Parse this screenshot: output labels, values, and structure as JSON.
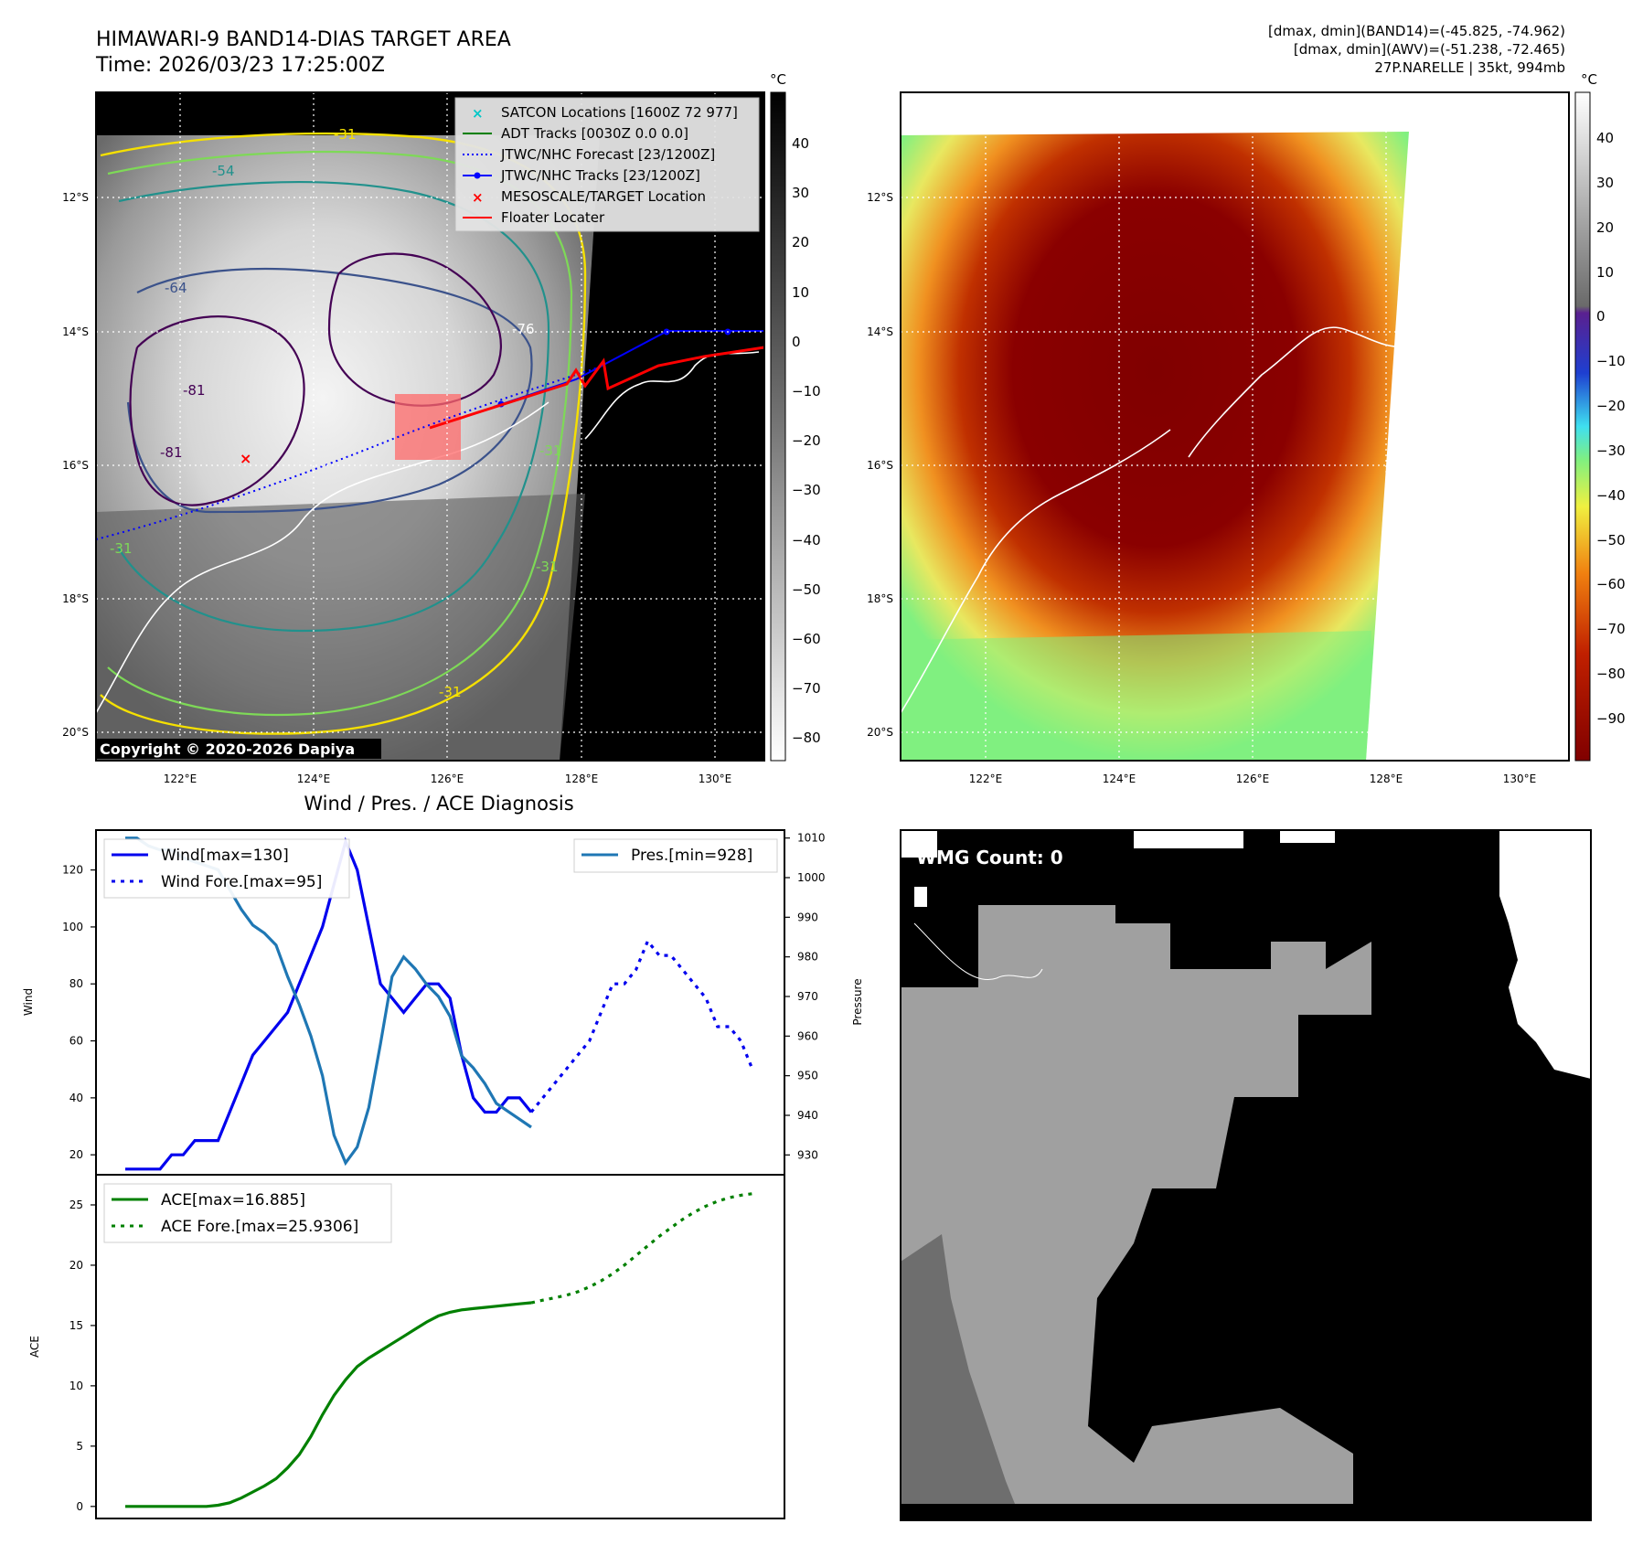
{
  "header": {
    "title": "HIMAWARI-9 BAND14-DIAS TARGET AREA",
    "time": "Time: 2026/03/23 17:25:00Z",
    "stats1": "[dmax, dmin](BAND14)=(-45.825, -74.962)",
    "stats2": "[dmax, dmin](AWV)=(-51.238, -72.465)",
    "storm": "27P.NARELLE | 35kt, 994mb"
  },
  "copyright": "Copyright © 2020-2026 Dapiya",
  "map_panels": {
    "lat_labels": [
      "12°S",
      "14°S",
      "16°S",
      "18°S",
      "20°S"
    ],
    "lon_labels": [
      "122°E",
      "124°E",
      "126°E",
      "128°E",
      "130°E"
    ],
    "contour_labels": [
      "-31",
      "-54",
      "-64",
      "-76",
      "-81",
      "-81",
      "-31",
      "-31",
      "-31",
      "-31"
    ],
    "colorbar_unit": "°C",
    "colorbar_left_ticks": [
      "40",
      "30",
      "20",
      "10",
      "0",
      "−10",
      "−20",
      "−30",
      "−40",
      "−50",
      "−60",
      "−70",
      "−80"
    ],
    "colorbar_right_ticks": [
      "40",
      "30",
      "20",
      "10",
      "0",
      "−10",
      "−20",
      "−30",
      "−40",
      "−50",
      "−60",
      "−70",
      "−80",
      "−90"
    ],
    "legend": [
      {
        "label": "SATCON Locations [1600Z 72 977]",
        "color": "#00c8c8",
        "marker": "x"
      },
      {
        "label": "ADT Tracks [0030Z 0.0 0.0]",
        "color": "#008000",
        "marker": "line"
      },
      {
        "label": "JTWC/NHC Forecast [23/1200Z]",
        "color": "#0000ff",
        "marker": "dotted"
      },
      {
        "label": "JTWC/NHC Tracks [23/1200Z]",
        "color": "#0000ff",
        "marker": "line-dot"
      },
      {
        "label": "MESOSCALE/TARGET Location",
        "color": "#ff0000",
        "marker": "x"
      },
      {
        "label": "Floater Locater",
        "color": "#ff0000",
        "marker": "line"
      }
    ]
  },
  "diag": {
    "title": "Wind / Pres. / ACE Diagnosis",
    "wind_ylabel": "Wind",
    "pres_ylabel": "Pressure",
    "ace_ylabel": "ACE",
    "wind_legend": [
      "Wind[max=130]",
      "Wind Fore.[max=95]"
    ],
    "pres_legend": "Pres.[min=928]",
    "ace_legend": [
      "ACE[max=16.885]",
      "ACE Fore.[max=25.9306]"
    ]
  },
  "wmg": {
    "label": "WMG Count: 0"
  },
  "chart_data": [
    {
      "type": "line",
      "title": "Wind / Pres. / ACE Diagnosis",
      "ylabel": "Wind",
      "ylim": [
        13,
        134
      ],
      "y_ticks": [
        20,
        40,
        60,
        80,
        100,
        120
      ],
      "series": [
        {
          "name": "Wind[max=130]",
          "color": "#0000ee",
          "style": "solid",
          "values": [
            15,
            15,
            15,
            15,
            20,
            20,
            25,
            25,
            25,
            35,
            45,
            55,
            60,
            65,
            70,
            80,
            90,
            100,
            115,
            130,
            120,
            100,
            80,
            75,
            70,
            75,
            80,
            80,
            75,
            55,
            40,
            35,
            35,
            40,
            40,
            35
          ]
        },
        {
          "name": "Wind Fore.[max=95]",
          "color": "#0000ee",
          "style": "dotted",
          "values": [
            35,
            40,
            45,
            50,
            55,
            60,
            70,
            80,
            80,
            85,
            95,
            90,
            90,
            85,
            80,
            75,
            65,
            65,
            60,
            50
          ]
        }
      ]
    },
    {
      "type": "line",
      "ylabel": "Pressure",
      "ylim": [
        925,
        1012
      ],
      "y_ticks": [
        930,
        940,
        950,
        960,
        970,
        980,
        990,
        1000,
        1010
      ],
      "series": [
        {
          "name": "Pres.[min=928]",
          "color": "#1f77b4",
          "style": "solid",
          "values": [
            1010,
            1010,
            1008,
            1007,
            1007,
            1005,
            1004,
            1003,
            1002,
            997,
            992,
            988,
            986,
            983,
            975,
            968,
            960,
            950,
            935,
            928,
            932,
            942,
            958,
            975,
            980,
            977,
            973,
            970,
            965,
            955,
            952,
            948,
            943,
            941,
            939,
            937
          ]
        }
      ]
    },
    {
      "type": "line",
      "ylabel": "ACE",
      "ylim": [
        -1,
        27.5
      ],
      "y_ticks": [
        0,
        5,
        10,
        15,
        20,
        25
      ],
      "series": [
        {
          "name": "ACE[max=16.885]",
          "color": "#008000",
          "style": "solid",
          "values": [
            0,
            0,
            0,
            0,
            0,
            0,
            0,
            0,
            0.1,
            0.3,
            0.7,
            1.2,
            1.7,
            2.3,
            3.2,
            4.3,
            5.8,
            7.6,
            9.2,
            10.5,
            11.6,
            12.3,
            12.9,
            13.5,
            14.1,
            14.7,
            15.3,
            15.8,
            16.1,
            16.3,
            16.4,
            16.5,
            16.6,
            16.7,
            16.8,
            16.885
          ]
        },
        {
          "name": "ACE Fore.[max=25.9306]",
          "color": "#008000",
          "style": "dotted",
          "values": [
            16.885,
            17.1,
            17.3,
            17.5,
            17.8,
            18.2,
            18.7,
            19.3,
            20,
            20.8,
            21.6,
            22.4,
            23.1,
            23.8,
            24.4,
            24.9,
            25.3,
            25.6,
            25.8,
            25.9306
          ]
        }
      ]
    }
  ]
}
